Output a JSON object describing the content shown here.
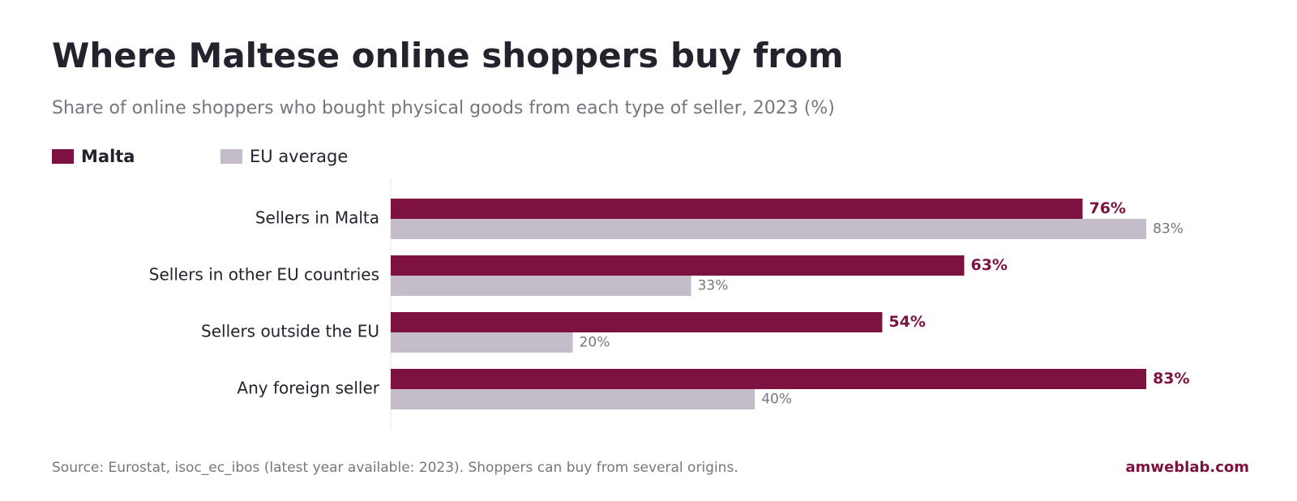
{
  "header": {
    "title": "Where Maltese online shoppers buy from",
    "subtitle": "Share of online shoppers who bought physical goods from each type of seller, 2023 (%)"
  },
  "legend": {
    "items": [
      {
        "label": "Malta",
        "color": "#7d1241"
      },
      {
        "label": "EU average",
        "color": "#c4bdc9"
      }
    ]
  },
  "chart_data": {
    "type": "bar",
    "orientation": "horizontal",
    "title": "Where Maltese online shoppers buy from",
    "subtitle": "Share of online shoppers who bought physical goods from each type of seller, 2023 (%)",
    "categories": [
      "Sellers in Malta",
      "Sellers in other EU countries",
      "Sellers outside the EU",
      "Any foreign seller"
    ],
    "series": [
      {
        "name": "Malta",
        "values": [
          76,
          63,
          54,
          83
        ],
        "labels": [
          "76%",
          "63%",
          "54%",
          "83%"
        ],
        "color": "#7d1241"
      },
      {
        "name": "EU average",
        "values": [
          83,
          33,
          20,
          40
        ],
        "labels": [
          "83%",
          "33%",
          "20%",
          "40%"
        ],
        "color": "#c4bdc9"
      }
    ],
    "xlim": [
      0,
      100
    ],
    "grid": false,
    "legend_position": "top-left"
  },
  "footer": {
    "source": "Source: Eurostat, isoc_ec_ibos (latest year available: 2023). Shoppers can buy from several origins.",
    "brand": "amweblab.com"
  }
}
